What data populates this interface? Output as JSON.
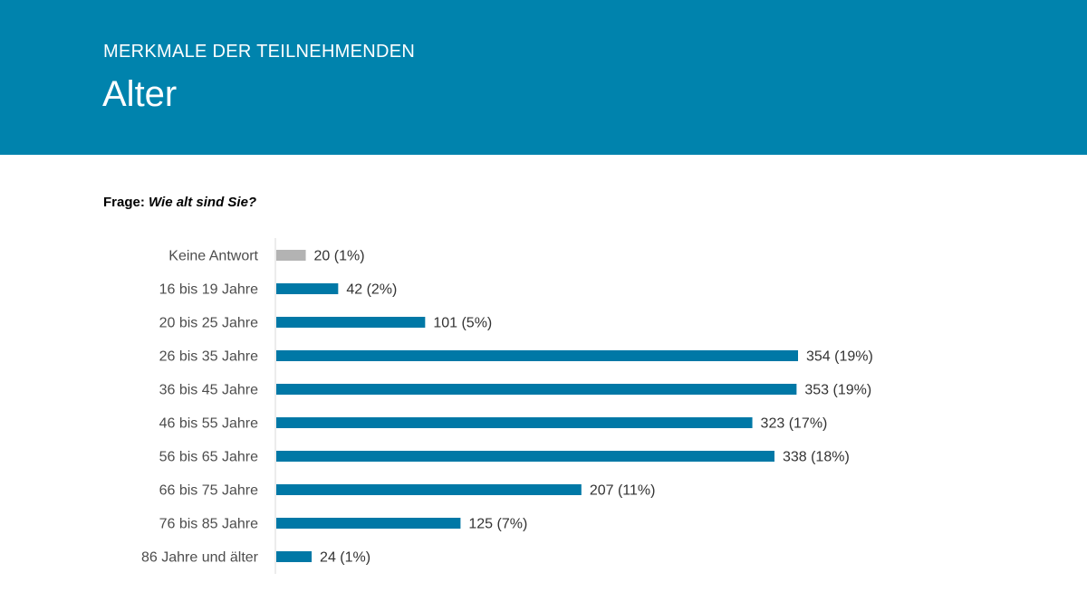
{
  "header": {
    "kicker": "MERKMALE DER TEILNEHMENDEN",
    "title": "Alter"
  },
  "question": {
    "prefix": "Frage:",
    "text": "Wie alt sind Sie?"
  },
  "colors": {
    "header_bg": "#0083ad",
    "bar": "#0078a6",
    "bar_no_answer": "#b3b3b3",
    "axis": "#d9d9d9"
  },
  "chart_data": {
    "type": "bar",
    "orientation": "horizontal",
    "title": "",
    "xlabel": "",
    "ylabel": "",
    "grid": false,
    "legend": "none",
    "categories": [
      "Keine Antwort",
      "16 bis 19 Jahre",
      "20 bis 25 Jahre",
      "26 bis 35 Jahre",
      "36 bis 45 Jahre",
      "46 bis 55 Jahre",
      "56 bis 65 Jahre",
      "66 bis 75 Jahre",
      "76 bis 85 Jahre",
      "86 Jahre und älter"
    ],
    "values": [
      20,
      42,
      101,
      354,
      353,
      323,
      338,
      207,
      125,
      24
    ],
    "data_labels": [
      "20 (1%)",
      "42 (2%)",
      "101 (5%)",
      "354 (19%)",
      "353 (19%)",
      "323 (17%)",
      "338 (18%)",
      "207 (11%)",
      "125 (7%)",
      "24 (1%)"
    ],
    "xlim": [
      0,
      354
    ]
  }
}
